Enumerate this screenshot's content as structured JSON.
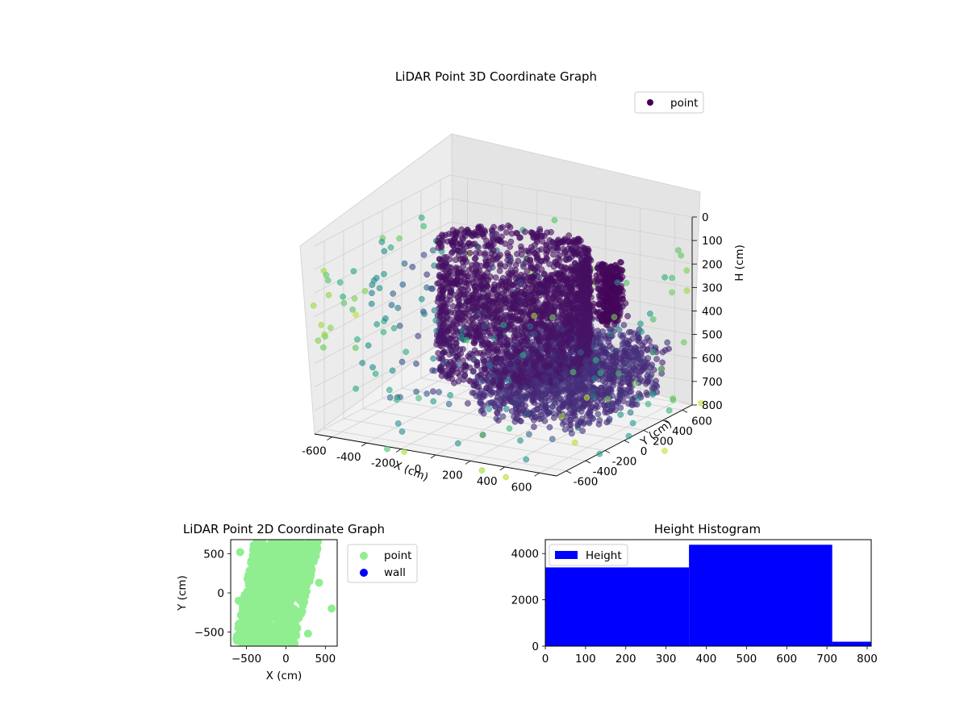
{
  "chart_data": [
    {
      "type": "scatter",
      "projection": "3d",
      "title": "LiDAR Point 3D Coordinate Graph",
      "xlabel": "X (cm)",
      "ylabel": "Y (cm)",
      "zlabel": "H (cm)",
      "xlim": [
        -700,
        700
      ],
      "ylim": [
        -700,
        700
      ],
      "zlim": [
        0,
        800
      ],
      "z_inverted": true,
      "x_ticks": [
        "-600",
        "-400",
        "-200",
        "0",
        "200",
        "400",
        "600"
      ],
      "y_ticks": [
        "-600",
        "-400",
        "-200",
        "0",
        "200",
        "400",
        "600"
      ],
      "z_ticks": [
        "0",
        "100",
        "200",
        "300",
        "400",
        "500",
        "600",
        "700",
        "800"
      ],
      "colormap": "viridis",
      "grid": true,
      "legend": {
        "placement": "top-right",
        "entries": [
          {
            "label": "point",
            "color": "#440154"
          }
        ]
      },
      "series": [
        {
          "name": "point",
          "shape_description": "curved wall surface and sloped floor sheet from LiDAR scan",
          "wall_arc": {
            "center": [
              0,
              0
            ],
            "radius_cm": 430,
            "angle_range_deg": [
              -110,
              170
            ],
            "h_range_cm": [
              80,
              560
            ]
          },
          "floor_sheet": {
            "x_range": [
              -50,
              650
            ],
            "y_range": [
              -350,
              600
            ],
            "h_range_cm": [
              480,
              720
            ]
          },
          "upper_cluster": {
            "center": [
              450,
              300
            ],
            "h_range_cm": [
              150,
              400
            ]
          },
          "outliers": {
            "count": 260,
            "h_range_cm": [
              100,
              800
            ]
          }
        }
      ]
    },
    {
      "type": "scatter",
      "title": "LiDAR Point 2D Coordinate Graph",
      "xlabel": "X (cm)",
      "ylabel": "Y (cm)",
      "xlim": [
        -700,
        650
      ],
      "ylim": [
        -680,
        680
      ],
      "x_ticks": [
        "−500",
        "0",
        "500"
      ],
      "y_ticks": [
        "−500",
        "0",
        "500"
      ],
      "legend": {
        "placement": "outside-right",
        "entries": [
          {
            "label": "point",
            "color": "#90ee90"
          },
          {
            "label": "wall",
            "color": "#0000ff"
          }
        ]
      },
      "series": [
        {
          "name": "point",
          "color": "#90ee90",
          "region": {
            "x_range": [
              -700,
              450
            ],
            "y_range": [
              -680,
              680
            ]
          }
        },
        {
          "name": "wall",
          "color": "#0000ff",
          "points": []
        }
      ]
    },
    {
      "type": "bar",
      "subtype": "histogram",
      "title": "Height Histogram",
      "xlabel": "",
      "ylabel": "",
      "xlim": [
        0,
        810
      ],
      "ylim": [
        0,
        4600
      ],
      "x_ticks": [
        "0",
        "100",
        "200",
        "300",
        "400",
        "500",
        "600",
        "700",
        "800"
      ],
      "y_ticks": [
        "0",
        "2000",
        "4000"
      ],
      "legend": {
        "placement": "top-left",
        "entries": [
          {
            "label": "Height",
            "color": "#0000ff"
          }
        ]
      },
      "series": [
        {
          "name": "Height",
          "color": "#0000ff",
          "bins": [
            [
              0,
              357
            ],
            [
              357,
              713
            ],
            [
              713,
              810
            ]
          ],
          "values": [
            3400,
            4380,
            190
          ]
        }
      ]
    }
  ]
}
